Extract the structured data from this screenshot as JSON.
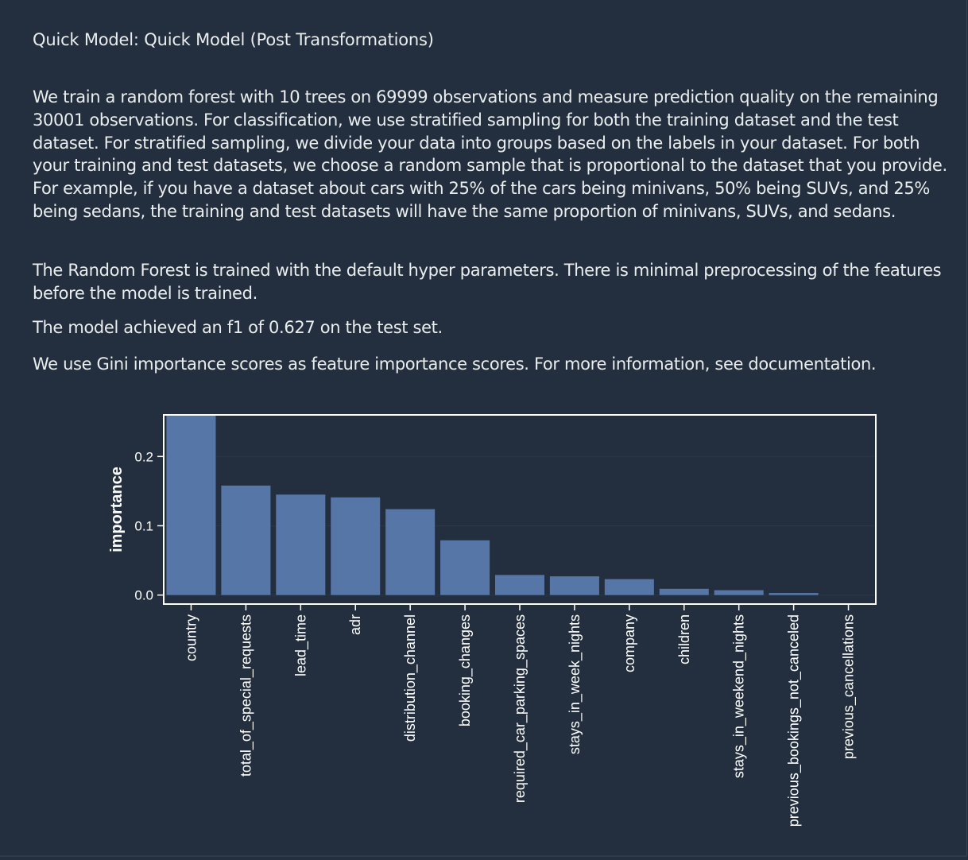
{
  "header": {
    "title": "Quick Model: Quick Model (Post Transformations)"
  },
  "description": {
    "paragraph_1": "We train a random forest with 10 trees on 69999 observations and measure prediction quality on the remaining 30001 observations. For classification, we use stratified sampling for both the training dataset and the test dataset. For stratified sampling, we divide your data into groups based on the labels in your dataset. For both your training and test datasets, we choose a random sample that is proportional to the dataset that you provide. For example, if you have a dataset about cars with 25% of the cars being minivans, 50% being SUVs, and 25% being sedans, the training and test datasets will have the same proportion of minivans, SUVs, and sedans.",
    "paragraph_2": "The Random Forest is trained with the default hyper parameters. There is minimal preprocessing of the features before the model is trained.",
    "paragraph_3": "The model achieved an f1 of 0.627 on the test set.",
    "paragraph_4": "We use Gini importance scores as feature importance scores. For more information, see documentation."
  },
  "chart_data": {
    "type": "bar",
    "title": "",
    "xlabel": "",
    "ylabel": "importance",
    "categories": [
      "country",
      "total_of_special_requests",
      "lead_time",
      "adr",
      "distribution_channel",
      "booking_changes",
      "required_car_parking_spaces",
      "stays_in_week_nights",
      "company",
      "children",
      "stays_in_weekend_nights",
      "previous_bookings_not_canceled",
      "previous_cancellations"
    ],
    "values": [
      0.26,
      0.158,
      0.145,
      0.141,
      0.124,
      0.079,
      0.029,
      0.027,
      0.023,
      0.009,
      0.007,
      0.003,
      0.0
    ],
    "yticks": [
      0.0,
      0.1,
      0.2
    ],
    "ytick_labels": [
      "0.0",
      "0.1",
      "0.2"
    ],
    "ylim": [
      -0.013,
      0.26
    ],
    "grid": true,
    "legend": "none",
    "colors": {
      "bar": "#5576a6",
      "grid": "#2c3746",
      "axis": "#ffffff",
      "text": "#ffffff"
    }
  }
}
